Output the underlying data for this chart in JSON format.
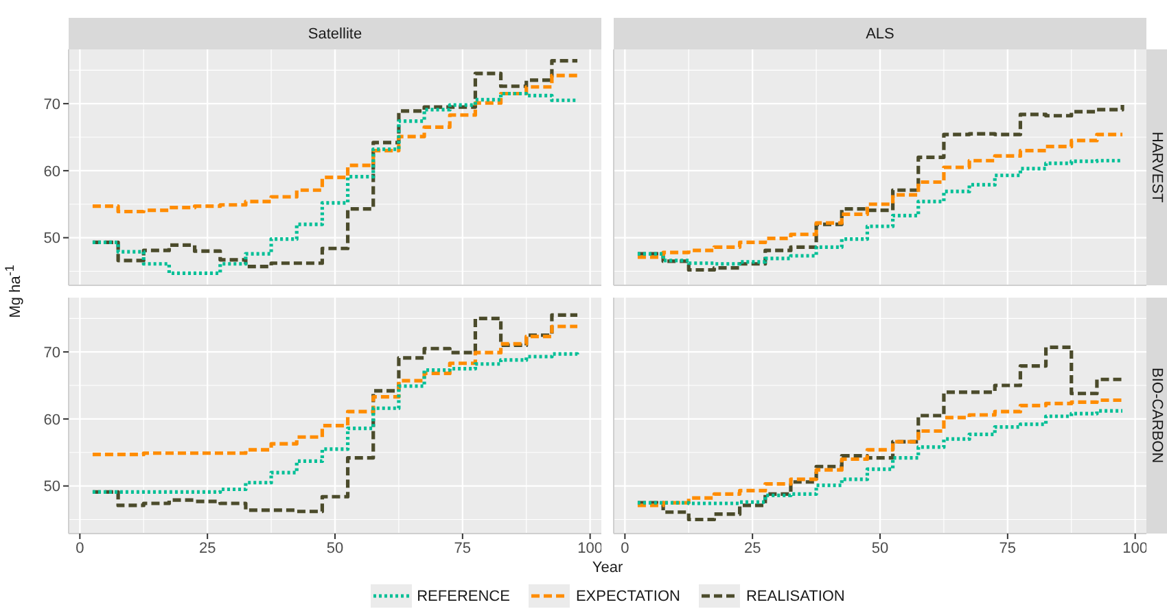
{
  "chart_data": [
    {
      "type": "step",
      "title": "Satellite",
      "ylabel": "Mg ha$^{-1}$",
      "x": [
        2.5,
        7.5,
        12.5,
        17.5,
        22.5,
        27.5,
        32.5,
        37.5,
        42.5,
        47.5,
        52.5,
        57.5,
        62.5,
        67.5,
        72.5,
        77.5,
        82.5,
        87.5,
        92.5,
        97.5
      ],
      "xlim": [
        -2.2,
        102.2
      ],
      "ylim": [
        42.9,
        78.1
      ],
      "xticks": [
        0,
        25,
        50,
        75,
        100
      ],
      "yticks": [
        50,
        60,
        70
      ],
      "grid": true,
      "legend": "bottom",
      "tick_labels": "y",
      "series": [
        {
          "name": "REFERENCE",
          "color": "#00bf96",
          "line_style": "dotted",
          "values": [
            49.3,
            47.9,
            46.1,
            44.7,
            44.7,
            46.1,
            47.6,
            49.8,
            52.0,
            55.2,
            59.1,
            63.2,
            67.4,
            69.1,
            69.8,
            70.6,
            71.5,
            71.2,
            70.5,
            70.5
          ]
        },
        {
          "name": "EXPECTATION",
          "color": "#ff8c00",
          "line_style": "dashed",
          "values": [
            54.7,
            53.9,
            54.1,
            54.5,
            54.7,
            54.9,
            55.4,
            56.1,
            57.1,
            59.0,
            60.8,
            63.0,
            65.1,
            66.5,
            68.3,
            70.1,
            71.5,
            72.5,
            74.2,
            74.2
          ]
        },
        {
          "name": "REALISATION",
          "color": "#4b4b2b",
          "line_style": "dashed",
          "values": [
            49.3,
            46.6,
            48.1,
            48.9,
            48.0,
            46.7,
            45.7,
            46.2,
            46.2,
            48.4,
            54.3,
            64.2,
            68.9,
            69.5,
            69.5,
            74.5,
            72.6,
            73.5,
            76.4,
            76.4
          ]
        }
      ]
    },
    {
      "type": "step",
      "title": "ALS",
      "annotations": [
        "HARVEST"
      ],
      "x": [
        2.5,
        7.5,
        12.5,
        17.5,
        22.5,
        27.5,
        32.5,
        37.5,
        42.5,
        47.5,
        52.5,
        57.5,
        62.5,
        67.5,
        72.5,
        77.5,
        82.5,
        87.5,
        92.5,
        97.5
      ],
      "xlim": [
        -2.2,
        102.2
      ],
      "ylim": [
        42.9,
        78.1
      ],
      "xticks": [
        0,
        25,
        50,
        75,
        100
      ],
      "yticks": [
        50,
        60,
        70
      ],
      "grid": true,
      "tick_labels": false,
      "series": [
        {
          "color": "#00bf96",
          "line_style": "dotted",
          "values": [
            47.6,
            46.6,
            46.2,
            46.1,
            46.4,
            46.9,
            47.3,
            48.6,
            49.8,
            51.7,
            53.3,
            55.4,
            56.9,
            57.9,
            59.3,
            60.3,
            61.1,
            61.4,
            61.5,
            61.5
          ]
        },
        {
          "color": "#ff8c00",
          "line_style": "dashed",
          "values": [
            47.1,
            47.8,
            48.1,
            48.6,
            49.3,
            49.9,
            50.5,
            52.2,
            53.5,
            55.0,
            56.4,
            58.3,
            60.5,
            61.5,
            62.2,
            63.0,
            63.6,
            64.5,
            65.4,
            65.4
          ]
        },
        {
          "color": "#4b4b2b",
          "line_style": "dashed",
          "values": [
            47.6,
            46.5,
            45.2,
            45.5,
            46.1,
            48.1,
            48.6,
            52.0,
            54.3,
            54.1,
            57.1,
            62.0,
            65.4,
            65.5,
            65.4,
            68.4,
            68.2,
            68.8,
            69.1,
            69.8
          ]
        }
      ]
    },
    {
      "type": "step",
      "xlabel": "Year",
      "x": [
        2.5,
        7.5,
        12.5,
        17.5,
        22.5,
        27.5,
        32.5,
        37.5,
        42.5,
        47.5,
        52.5,
        57.5,
        62.5,
        67.5,
        72.5,
        77.5,
        82.5,
        87.5,
        92.5,
        97.5
      ],
      "xlim": [
        -2.2,
        102.2
      ],
      "ylim": [
        42.9,
        78.1
      ],
      "xticks": [
        0,
        25,
        50,
        75,
        100
      ],
      "yticks": [
        50,
        60,
        70
      ],
      "grid": true,
      "series": [
        {
          "color": "#00bf96",
          "line_style": "dotted",
          "values": [
            49.1,
            49.1,
            49.1,
            49.1,
            49.1,
            49.5,
            50.5,
            52.0,
            53.7,
            55.5,
            58.6,
            61.6,
            64.9,
            67.3,
            67.5,
            68.2,
            68.8,
            69.3,
            69.7,
            69.5
          ]
        },
        {
          "color": "#ff8c00",
          "line_style": "dashed",
          "values": [
            54.7,
            54.7,
            54.9,
            54.9,
            54.9,
            54.9,
            55.4,
            56.3,
            57.3,
            59.0,
            61.1,
            63.3,
            65.7,
            66.8,
            68.3,
            69.9,
            71.2,
            72.3,
            73.8,
            73.8
          ]
        },
        {
          "color": "#4b4b2b",
          "line_style": "dashed",
          "values": [
            49.1,
            47.1,
            47.4,
            47.9,
            47.7,
            47.4,
            46.4,
            46.4,
            46.2,
            48.4,
            54.2,
            64.2,
            69.1,
            70.5,
            69.9,
            75.0,
            71.0,
            72.5,
            75.5,
            75.5
          ]
        }
      ]
    },
    {
      "type": "step",
      "annotations": [
        "BIO-CARBON"
      ],
      "x": [
        2.5,
        7.5,
        12.5,
        17.5,
        22.5,
        27.5,
        32.5,
        37.5,
        42.5,
        47.5,
        52.5,
        57.5,
        62.5,
        67.5,
        72.5,
        77.5,
        82.5,
        87.5,
        92.5,
        97.5
      ],
      "xlim": [
        -2.2,
        102.2
      ],
      "ylim": [
        42.9,
        78.1
      ],
      "xticks": [
        0,
        25,
        50,
        75,
        100
      ],
      "yticks": [
        50,
        60,
        70
      ],
      "grid": true,
      "tick_labels": "x",
      "series": [
        {
          "color": "#00bf96",
          "line_style": "dotted",
          "values": [
            47.5,
            47.5,
            47.4,
            47.4,
            47.6,
            48.6,
            48.8,
            50.1,
            51.0,
            52.5,
            54.2,
            55.8,
            57.0,
            57.7,
            58.8,
            59.2,
            60.4,
            60.8,
            61.2,
            61.2
          ]
        },
        {
          "color": "#ff8c00",
          "line_style": "dashed",
          "values": [
            47.1,
            47.5,
            48.2,
            48.8,
            49.3,
            50.3,
            51.0,
            52.4,
            54.0,
            55.4,
            56.6,
            58.2,
            60.2,
            60.6,
            61.1,
            62.0,
            62.3,
            62.5,
            62.8,
            62.8
          ]
        },
        {
          "color": "#4b4b2b",
          "line_style": "dashed",
          "values": [
            47.5,
            46.1,
            45.0,
            45.8,
            47.1,
            48.8,
            50.6,
            52.9,
            54.5,
            54.2,
            56.6,
            60.5,
            64.0,
            64.0,
            65.0,
            67.9,
            70.7,
            63.8,
            65.9,
            65.9
          ]
        }
      ]
    }
  ]
}
